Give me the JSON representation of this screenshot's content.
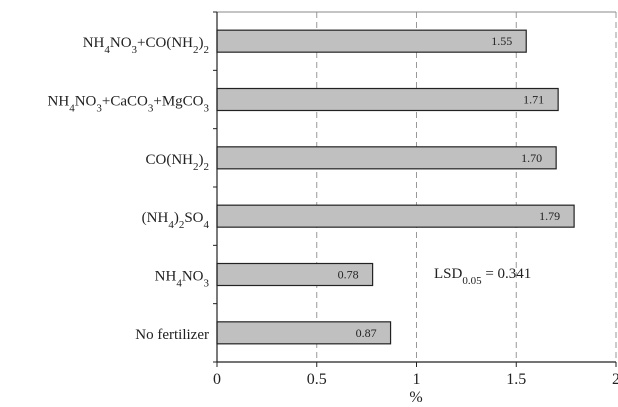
{
  "chart_data": {
    "type": "bar",
    "orientation": "horizontal",
    "categories": [
      "NH4NO3+CO(NH2)2",
      "NH4NO3+CaCO3+MgCO3",
      "CO(NH2)2",
      "(NH4)2SO4",
      "NH4NO3",
      "No fertilizer"
    ],
    "values": [
      1.55,
      1.71,
      1.7,
      1.79,
      0.78,
      0.87
    ],
    "value_labels": [
      "1.55",
      "1.71",
      "1.70",
      "1.79",
      "0.78",
      "0.87"
    ],
    "xlabel": "%",
    "xlim": [
      0,
      2
    ],
    "xticks": [
      "0",
      "0.5",
      "1",
      "1.5",
      "2"
    ],
    "grid": "vertical dashed",
    "bar_color": "#c0c0c0",
    "annotation": {
      "text": "LSD",
      "sub": "0.05",
      "rest": " = 0.341"
    }
  }
}
